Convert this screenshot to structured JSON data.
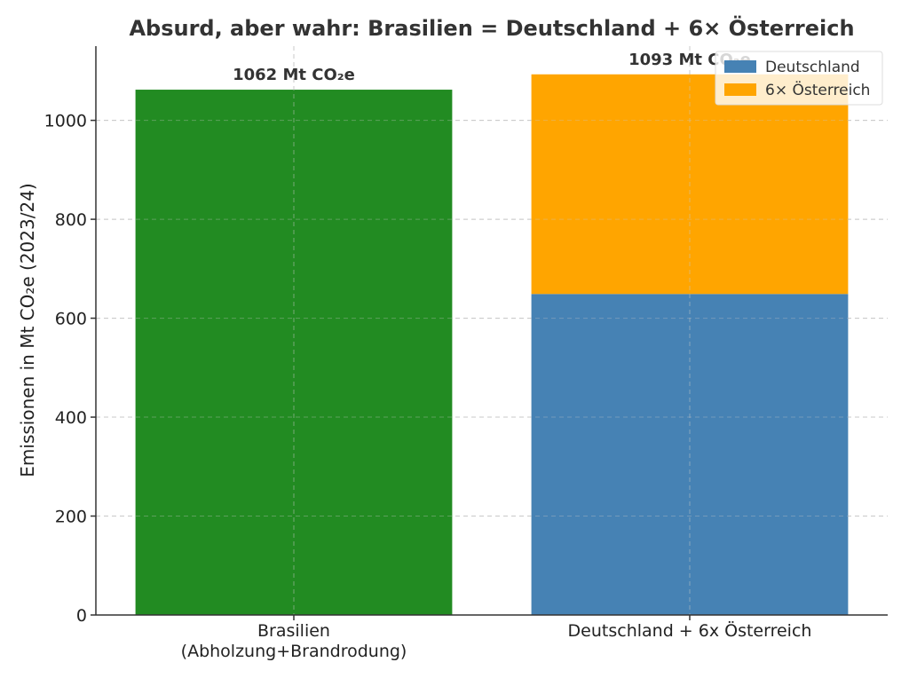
{
  "chart_data": {
    "type": "bar",
    "stacked": true,
    "title": "Absurd, aber wahr: Brasilien = Deutschland + 6× Österreich",
    "ylabel": "Emissionen in Mt CO₂e (2023/24)",
    "xlabel": "",
    "ylim": [
      0,
      1150
    ],
    "yticks": [
      0,
      200,
      400,
      600,
      800,
      1000
    ],
    "grid": true,
    "legend_position": "top-right",
    "categories": [
      {
        "lines": [
          "Brasilien",
          "(Abholzung+Brandrodung)"
        ]
      },
      {
        "lines": [
          "Deutschland + 6x Österreich"
        ]
      }
    ],
    "series": [
      {
        "values": [
          1062,
          0
        ],
        "color": "#228b22"
      },
      {
        "name": "Deutschland",
        "values": [
          0,
          649
        ],
        "color": "#4682b4"
      },
      {
        "name": "6× Österreich",
        "values": [
          0,
          444
        ],
        "color": "#ffa500"
      }
    ],
    "data_labels": [
      "1062 Mt CO₂e",
      "1093 Mt CO₂e"
    ],
    "legend": [
      {
        "label": "Deutschland",
        "color": "#4682b4"
      },
      {
        "label": "6× Österreich",
        "color": "#ffa500"
      }
    ]
  }
}
